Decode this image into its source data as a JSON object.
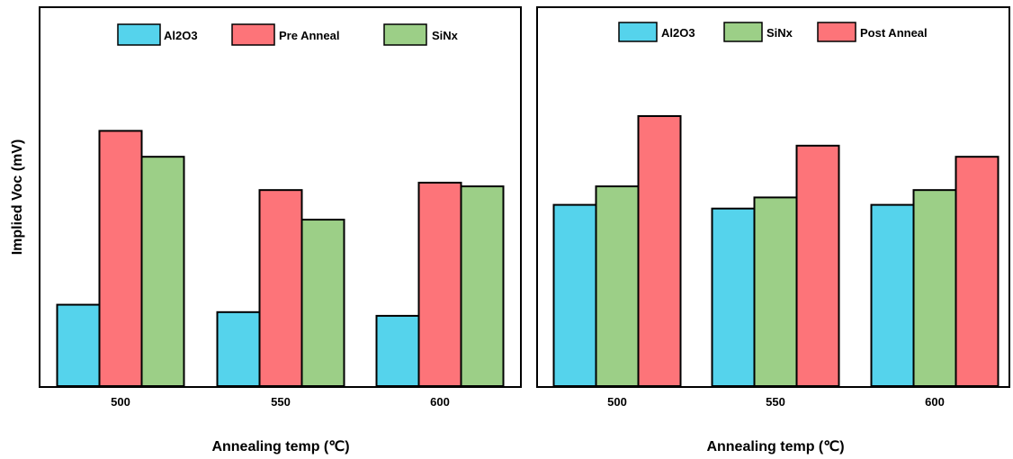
{
  "colors": {
    "Al2O3": "#55d3ec",
    "Pre Anneal": "#fd7479",
    "Post Anneal": "#fd7479",
    "SiNx": "#9ccf87",
    "outline": "#000000",
    "background": "#ffffff"
  },
  "chart_data": [
    {
      "type": "bar",
      "title": "",
      "xlabel": "Annealing temp (℃)",
      "ylabel": "Implied Voc (mV)",
      "y_ticks_shown": false,
      "ylim": [
        0,
        100
      ],
      "grid": false,
      "legend_position": "top",
      "categories": [
        "500",
        "550",
        "600"
      ],
      "series": [
        {
          "name": "Al2O3",
          "values": [
            22,
            20,
            19
          ]
        },
        {
          "name": "Pre Anneal",
          "values": [
            69,
            53,
            55
          ]
        },
        {
          "name": "SiNx",
          "values": [
            62,
            45,
            54
          ]
        }
      ]
    },
    {
      "type": "bar",
      "title": "",
      "xlabel": "Annealing temp (℃)",
      "ylabel": "",
      "y_ticks_shown": false,
      "ylim": [
        0,
        100
      ],
      "grid": false,
      "legend_position": "top",
      "categories": [
        "500",
        "550",
        "600"
      ],
      "series": [
        {
          "name": "Al2O3",
          "values": [
            49,
            48,
            49
          ]
        },
        {
          "name": "SiNx",
          "values": [
            54,
            51,
            53
          ]
        },
        {
          "name": "Post Anneal",
          "values": [
            73,
            65,
            62
          ]
        }
      ]
    }
  ]
}
